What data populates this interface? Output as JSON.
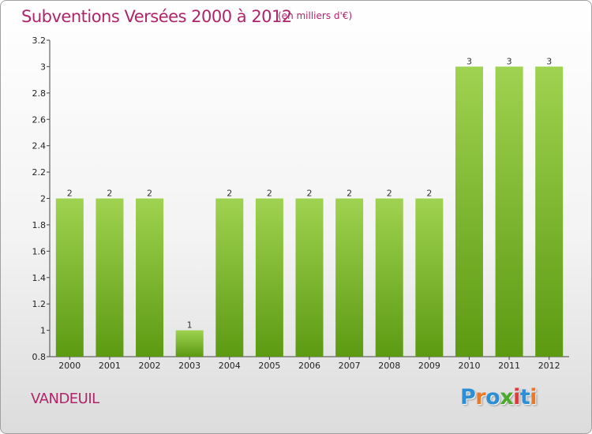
{
  "header": {
    "title": "Subventions Versées 2000 à 2012",
    "subtitle": "(en milliers d'€)"
  },
  "footer": {
    "town": "VANDEUIL",
    "logo": [
      "P",
      "r",
      "o",
      "x",
      "i",
      "t",
      "i"
    ],
    "logo_colors": [
      "#2c8fd6",
      "#e8782a",
      "#2c8fd6",
      "#4aaa2c",
      "#e03a3a",
      "#2c8fd6",
      "#e8782a"
    ]
  },
  "colors": {
    "bar_top": "#9fd250",
    "bar_bottom": "#5c9a12",
    "text_accent": "#b0246a"
  },
  "chart_data": {
    "type": "bar",
    "title": "Subventions Versées 2000 à 2012",
    "subtitle": "(en milliers d'€)",
    "xlabel": "",
    "ylabel": "",
    "categories": [
      "2000",
      "2001",
      "2002",
      "2003",
      "2004",
      "2005",
      "2006",
      "2007",
      "2008",
      "2009",
      "2010",
      "2011",
      "2012"
    ],
    "values": [
      2,
      2,
      2,
      1,
      2,
      2,
      2,
      2,
      2,
      2,
      3,
      3,
      3
    ],
    "data_labels": [
      "2",
      "2",
      "2",
      "1",
      "2",
      "2",
      "2",
      "2",
      "2",
      "2",
      "3",
      "3",
      "3"
    ],
    "ylim": [
      0.8,
      3.2
    ],
    "yticks": [
      0.8,
      1,
      1.2,
      1.4,
      1.6,
      1.8,
      2,
      2.2,
      2.4,
      2.6,
      2.8,
      3,
      3.2
    ],
    "ytick_labels": [
      "0.8",
      "1",
      "1.2",
      "1.4",
      "1.6",
      "1.8",
      "2",
      "2.2",
      "2.4",
      "2.6",
      "2.8",
      "3",
      "3.2"
    ],
    "grid": false,
    "legend": "none"
  }
}
